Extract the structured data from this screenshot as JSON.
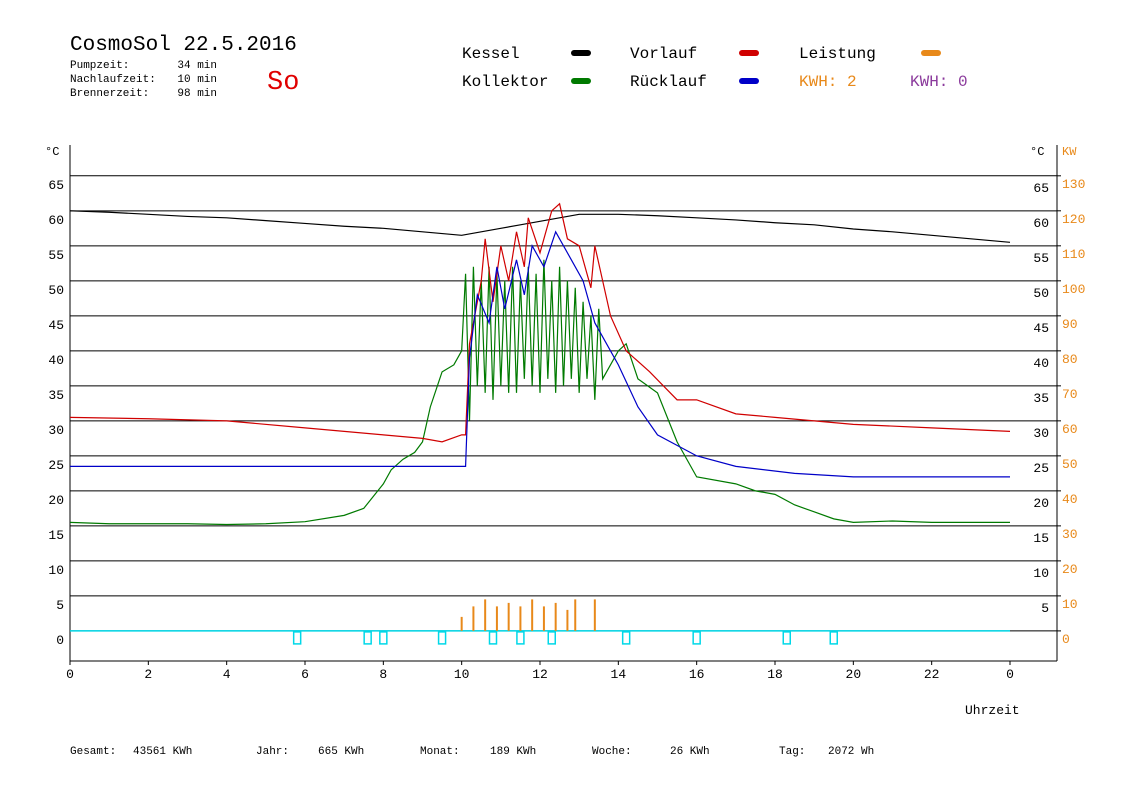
{
  "chart_data": {
    "type": "line",
    "title": "CosmoSol 22.5.2016",
    "info": [
      {
        "label": "Pumpzeit:",
        "value": "34 min"
      },
      {
        "label": "Nachlaufzeit:",
        "value": "10 min"
      },
      {
        "label": "Brennerzeit:",
        "value": "98 min"
      }
    ],
    "day": "So",
    "kwh_labels": [
      {
        "text": "KWH: 2",
        "color": "#e8891a"
      },
      {
        "text": "KWH: 0",
        "color": "#8b3a9c"
      }
    ],
    "ylabel": "°C",
    "y2label": "KW",
    "xlabel": "Uhrzeit",
    "xlim": [
      0,
      25.2
    ],
    "xticks": [
      0,
      2,
      4,
      6,
      8,
      10,
      12,
      14,
      16,
      18,
      20,
      22,
      {
        "value": 24,
        "label": "0"
      }
    ],
    "ylim": [
      -4.3,
      69.4
    ],
    "yticks": [
      0,
      5,
      10,
      15,
      20,
      25,
      30,
      35,
      40,
      45,
      50,
      55,
      60,
      65
    ],
    "y2lim": [
      -8.6,
      138.8
    ],
    "y2ticks": [
      0,
      10,
      20,
      30,
      40,
      50,
      60,
      70,
      80,
      90,
      100,
      110,
      120,
      130
    ],
    "grid": true,
    "series": [
      {
        "name": "Kessel",
        "color": "#000000",
        "x": [
          0,
          1,
          2,
          3,
          4,
          5,
          6,
          7,
          8,
          9,
          10,
          10.5,
          11,
          11.5,
          12,
          12.5,
          13,
          14,
          15,
          16,
          17,
          18,
          19,
          20,
          21,
          22,
          23,
          24
        ],
        "values": [
          60,
          59.8,
          59.5,
          59.2,
          59,
          58.6,
          58.2,
          57.8,
          57.5,
          57,
          56.5,
          57,
          57.5,
          58,
          58.5,
          59,
          59.5,
          59.5,
          59.3,
          59,
          58.7,
          58.3,
          58,
          57.4,
          57,
          56.5,
          56,
          55.5
        ]
      },
      {
        "name": "Kollektor",
        "color": "#007a00",
        "x": [
          0,
          1,
          2,
          3,
          4,
          5,
          6,
          7,
          7.5,
          8,
          8.2,
          8.5,
          8.8,
          9,
          9.2,
          9.5,
          9.8,
          10,
          10.1,
          10.2,
          10.3,
          10.4,
          10.5,
          10.6,
          10.7,
          10.8,
          10.9,
          11,
          11.1,
          11.2,
          11.3,
          11.4,
          11.5,
          11.6,
          11.7,
          11.8,
          11.9,
          12,
          12.1,
          12.2,
          12.3,
          12.4,
          12.5,
          12.6,
          12.7,
          12.8,
          12.9,
          13,
          13.1,
          13.2,
          13.3,
          13.4,
          13.5,
          13.6,
          14,
          14.2,
          14.5,
          15,
          15.5,
          16,
          17,
          17.5,
          18,
          18.5,
          19,
          19.5,
          20,
          21,
          22,
          23,
          24
        ],
        "values": [
          15.5,
          15.3,
          15.3,
          15.3,
          15.2,
          15.3,
          15.6,
          16.5,
          17.5,
          21,
          23,
          24.5,
          25.5,
          27,
          32,
          37,
          38,
          40,
          51,
          30,
          52,
          35,
          50,
          34,
          52,
          33,
          51,
          35,
          50,
          34,
          52,
          34,
          50,
          36,
          52,
          35,
          51,
          34,
          53,
          36,
          50,
          34,
          52,
          35,
          50,
          36,
          49,
          34,
          47,
          36,
          45,
          33,
          46,
          36,
          40,
          41,
          36,
          34,
          27,
          22,
          21,
          20,
          19.5,
          18,
          17,
          16,
          15.5,
          15.7,
          15.5,
          15.5,
          15.5
        ]
      },
      {
        "name": "Vorlauf",
        "color": "#d00000",
        "x": [
          0,
          2,
          4,
          6,
          8,
          9,
          9.5,
          10,
          10.1,
          10.2,
          10.5,
          10.6,
          10.8,
          11,
          11.2,
          11.4,
          11.6,
          11.7,
          12,
          12.3,
          12.5,
          12.7,
          13,
          13.3,
          13.4,
          13.8,
          14.2,
          14.8,
          15.5,
          16,
          17,
          18,
          19,
          20,
          22,
          24
        ],
        "values": [
          30.5,
          30.3,
          30,
          29,
          28,
          27.5,
          27,
          28,
          28,
          41,
          50,
          56,
          47,
          55,
          50,
          57,
          52,
          59,
          54,
          60,
          61,
          56,
          55,
          49,
          55,
          45,
          40,
          37,
          33,
          33,
          31,
          30.5,
          30,
          29.5,
          29,
          28.5
        ]
      },
      {
        "name": "Rücklauf",
        "color": "#0000c8",
        "x": [
          0,
          5,
          10,
          10.1,
          10.2,
          10.4,
          10.7,
          10.9,
          11.1,
          11.4,
          11.6,
          11.8,
          12.1,
          12.4,
          12.8,
          13.1,
          13.4,
          14,
          14.5,
          15,
          16,
          17,
          18.5,
          20,
          24
        ],
        "values": [
          23.5,
          23.5,
          23.5,
          23.5,
          39,
          48,
          44,
          52,
          46,
          53,
          48,
          55,
          52,
          57,
          53,
          50,
          44,
          38,
          32,
          28,
          25,
          23.5,
          22.5,
          22,
          22
        ]
      },
      {
        "name": "Leistung",
        "color": "#e8891a",
        "axis": "y2",
        "x": [
          10.0,
          10.3,
          10.6,
          10.9,
          11.2,
          11.5,
          11.8,
          12.1,
          12.4,
          12.7,
          12.9,
          13.4
        ],
        "values": [
          4,
          7,
          9,
          7,
          8,
          7,
          9,
          7,
          8,
          6,
          9,
          9
        ]
      }
    ],
    "pump_markers": [
      5.8,
      7.6,
      8.0,
      9.5,
      10.8,
      11.5,
      12.3,
      14.2,
      16.0,
      18.3,
      19.5
    ],
    "totals": [
      {
        "label": "Gesamt:",
        "value": "43561 KWh"
      },
      {
        "label": "Jahr:",
        "value": "665 KWh"
      },
      {
        "label": "Monat:",
        "value": "189 KWh"
      },
      {
        "label": "Woche:",
        "value": "26 KWh"
      },
      {
        "label": "Tag:",
        "value": "2072 Wh"
      }
    ]
  }
}
